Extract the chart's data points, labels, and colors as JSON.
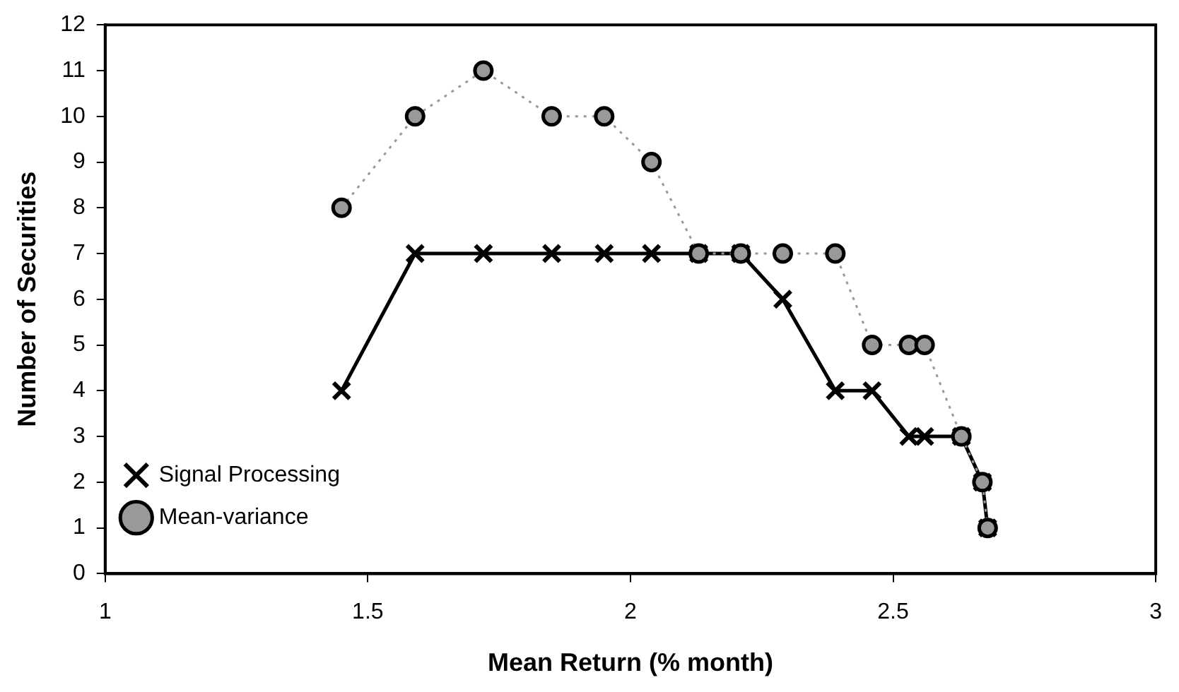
{
  "chart_data": {
    "type": "line",
    "xlabel": "Mean Return (% month)",
    "ylabel": "Number of Securities",
    "xlim": [
      1,
      3
    ],
    "xticks": [
      1,
      1.5,
      2,
      2.5,
      3
    ],
    "ylim": [
      0,
      12
    ],
    "yticks": [
      0,
      1,
      2,
      3,
      4,
      5,
      6,
      7,
      8,
      9,
      10,
      11,
      12
    ],
    "grid": false,
    "legend": "bottom left",
    "series": [
      {
        "name": "Signal Processing",
        "color": "#000000",
        "marker": "cross",
        "line_style": "solid",
        "x": [
          1.45,
          1.59,
          1.72,
          1.85,
          1.95,
          2.04,
          2.13,
          2.21,
          2.29,
          2.39,
          2.46,
          2.53,
          2.56,
          2.63,
          2.67,
          2.68
        ],
        "values": [
          4,
          7,
          7,
          7,
          7,
          7,
          7,
          7,
          6,
          4,
          4,
          3,
          3,
          3,
          2,
          1
        ]
      },
      {
        "name": "Mean-variance",
        "color": "#999999",
        "marker": "circle",
        "line_style": "dotted",
        "x": [
          1.45,
          1.59,
          1.72,
          1.85,
          1.95,
          2.04,
          2.13,
          2.21,
          2.29,
          2.39,
          2.46,
          2.53,
          2.56,
          2.63,
          2.67,
          2.68
        ],
        "values": [
          8,
          10,
          11,
          10,
          10,
          9,
          7,
          7,
          7,
          7,
          5,
          5,
          5,
          3,
          2,
          1
        ]
      }
    ]
  }
}
